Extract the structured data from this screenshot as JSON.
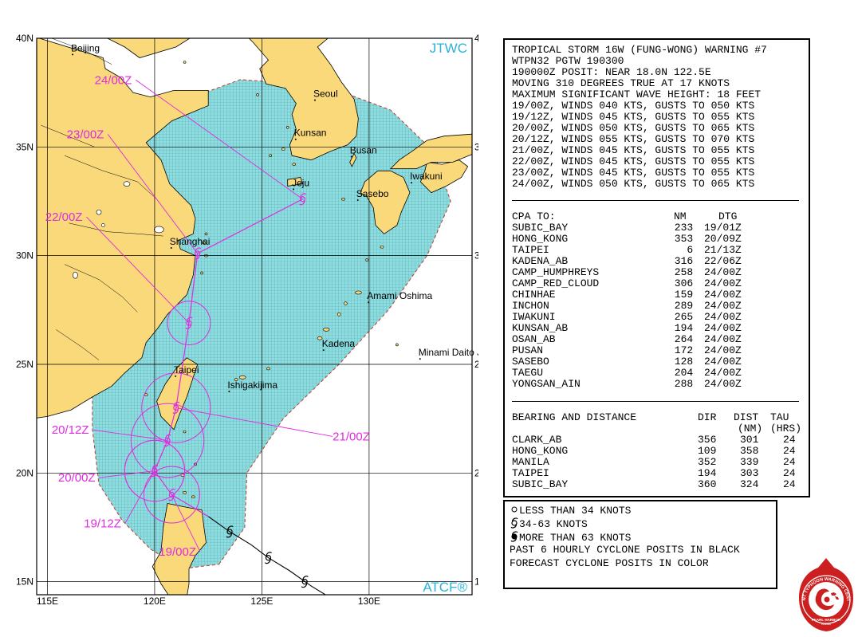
{
  "map": {
    "brand_top": "JTWC",
    "brand_bottom": "ATCF®",
    "lat_labels": [
      "40N",
      "35N",
      "30N",
      "25N",
      "20N",
      "15N"
    ],
    "lon_labels": [
      "115E",
      "120E",
      "125E",
      "130E"
    ],
    "places": [
      {
        "name": "Beijing",
        "lat": 39.4,
        "lon": 116.1
      },
      {
        "name": "Seoul",
        "lat": 37.3,
        "lon": 127.4
      },
      {
        "name": "Kunsan",
        "lat": 35.5,
        "lon": 126.5
      },
      {
        "name": "Busan",
        "lat": 34.7,
        "lon": 129.1
      },
      {
        "name": "Iwakuni",
        "lat": 33.5,
        "lon": 131.9
      },
      {
        "name": "Jeju",
        "lat": 33.2,
        "lon": 126.4
      },
      {
        "name": "Sasebo",
        "lat": 32.7,
        "lon": 129.4
      },
      {
        "name": "Shanghai",
        "lat": 30.5,
        "lon": 120.7
      },
      {
        "name": "Amami Oshima",
        "lat": 28.0,
        "lon": 129.9
      },
      {
        "name": "Kadena",
        "lat": 25.8,
        "lon": 127.8
      },
      {
        "name": "Minami Daito Jima",
        "lat": 25.4,
        "lon": 132.3
      },
      {
        "name": "Taipei",
        "lat": 24.6,
        "lon": 120.9
      },
      {
        "name": "Ishigakijima",
        "lat": 23.9,
        "lon": 123.4
      }
    ],
    "best_track": [
      {
        "lat": 18.0,
        "lon": 122.5
      },
      {
        "lat": 17.3,
        "lon": 123.5
      },
      {
        "lat": 16.7,
        "lon": 124.5
      },
      {
        "lat": 16.1,
        "lon": 125.3
      },
      {
        "lat": 15.5,
        "lon": 126.3
      },
      {
        "lat": 14.8,
        "lon": 127.3
      },
      {
        "lat": 14.2,
        "lon": 128.3
      },
      {
        "lat": 13.6,
        "lon": 129.3
      }
    ],
    "best_track_symbols": [
      {
        "lat": 17.3,
        "lon": 123.5
      },
      {
        "lat": 16.1,
        "lon": 125.3
      },
      {
        "lat": 15.0,
        "lon": 127.0
      },
      {
        "lat": 13.8,
        "lon": 129.0
      }
    ],
    "forecast_track": [
      {
        "lat": 18.0,
        "lon": 122.5
      },
      {
        "lat": 19.0,
        "lon": 120.8
      },
      {
        "lat": 20.1,
        "lon": 120.0
      },
      {
        "lat": 21.5,
        "lon": 120.6
      },
      {
        "lat": 23.0,
        "lon": 121.0
      },
      {
        "lat": 26.9,
        "lon": 121.6
      },
      {
        "lat": 30.1,
        "lon": 122.0
      },
      {
        "lat": 32.6,
        "lon": 126.9
      }
    ],
    "forecast_points": [
      {
        "label": "19/00Z",
        "lat": 19.0,
        "lon": 120.8,
        "r": 1.3,
        "label_lat": 16.2,
        "label_lon": 120.2
      },
      {
        "label": "19/12Z",
        "lat": 20.1,
        "lon": 120.0,
        "r": 1.4,
        "label_lat": 17.5,
        "label_lon": 116.7
      },
      {
        "label": "20/00Z",
        "lat": 20.1,
        "lon": 120.0,
        "r": 1.4,
        "label_lat": 19.6,
        "label_lon": 115.5
      },
      {
        "label": "20/12Z",
        "lat": 21.5,
        "lon": 120.6,
        "r": 1.7,
        "label_lat": 21.8,
        "label_lon": 115.2
      },
      {
        "label": "21/00Z",
        "lat": 23.0,
        "lon": 121.0,
        "r": 1.6,
        "label_lat": 21.5,
        "label_lon": 128.3
      },
      {
        "label": "22/00Z",
        "lat": 26.9,
        "lon": 121.6,
        "r": 1.0,
        "label_lat": 31.6,
        "label_lon": 114.9
      },
      {
        "label": "23/00Z",
        "lat": 30.1,
        "lon": 122.0,
        "r": 0,
        "label_lat": 35.4,
        "label_lon": 115.9
      },
      {
        "label": "24/00Z",
        "lat": 32.6,
        "lon": 126.9,
        "r": 0,
        "label_lat": 37.9,
        "label_lon": 117.2
      }
    ],
    "colors": {
      "land": "#fad97b",
      "sea": "#ffffff",
      "grid": "#000000",
      "track_forecast": "#e02be0",
      "track_best": "#000000",
      "danger": "#8ddde0",
      "danger_edge": "#c0392b",
      "brand": "#2ab3d9",
      "label": "#e02be0"
    }
  },
  "warning": {
    "lines": [
      "TROPICAL STORM 16W (FUNG-WONG) WARNING #7",
      "WTPN32 PGTW 190300",
      "190000Z POSIT: NEAR 18.0N 122.5E",
      "MOVING 310 DEGREES TRUE AT 17 KNOTS",
      "MAXIMUM SIGNIFICANT WAVE HEIGHT: 18 FEET",
      "19/00Z, WINDS 040 KTS, GUSTS TO 050 KTS",
      "19/12Z, WINDS 045 KTS, GUSTS TO 055 KTS",
      "20/00Z, WINDS 050 KTS, GUSTS TO 065 KTS",
      "20/12Z, WINDS 055 KTS, GUSTS TO 070 KTS",
      "21/00Z, WINDS 045 KTS, GUSTS TO 055 KTS",
      "22/00Z, WINDS 045 KTS, GUSTS TO 055 KTS",
      "23/00Z, WINDS 045 KTS, GUSTS TO 055 KTS",
      "24/00Z, WINDS 050 KTS, GUSTS TO 065 KTS"
    ],
    "cpa": {
      "header": {
        "site": "CPA TO:",
        "nm": "NM",
        "dtg": "DTG"
      },
      "rows": [
        {
          "site": "SUBIC_BAY",
          "nm": "233",
          "dtg": "19/01Z"
        },
        {
          "site": "HONG_KONG",
          "nm": "353",
          "dtg": "20/09Z"
        },
        {
          "site": "TAIPEI",
          "nm": "6",
          "dtg": "21/13Z"
        },
        {
          "site": "KADENA_AB",
          "nm": "316",
          "dtg": "22/06Z"
        },
        {
          "site": "CAMP_HUMPHREYS",
          "nm": "258",
          "dtg": "24/00Z"
        },
        {
          "site": "CAMP_RED_CLOUD",
          "nm": "306",
          "dtg": "24/00Z"
        },
        {
          "site": "CHINHAE",
          "nm": "159",
          "dtg": "24/00Z"
        },
        {
          "site": "INCHON",
          "nm": "289",
          "dtg": "24/00Z"
        },
        {
          "site": "IWAKUNI",
          "nm": "265",
          "dtg": "24/00Z"
        },
        {
          "site": "KUNSAN_AB",
          "nm": "194",
          "dtg": "24/00Z"
        },
        {
          "site": "OSAN_AB",
          "nm": "264",
          "dtg": "24/00Z"
        },
        {
          "site": "PUSAN",
          "nm": "172",
          "dtg": "24/00Z"
        },
        {
          "site": "SASEBO",
          "nm": "128",
          "dtg": "24/00Z"
        },
        {
          "site": "TAEGU",
          "nm": "204",
          "dtg": "24/00Z"
        },
        {
          "site": "YONGSAN_AIN",
          "nm": "288",
          "dtg": "24/00Z"
        }
      ]
    },
    "bearing": {
      "header": {
        "site": "BEARING AND DISTANCE",
        "dir": "DIR",
        "dist": "DIST",
        "tau": "TAU"
      },
      "subheader": {
        "dist": "(NM)",
        "tau": "(HRS)"
      },
      "rows": [
        {
          "site": "CLARK_AB",
          "dir": "356",
          "dist": "301",
          "tau": "24"
        },
        {
          "site": "HONG_KONG",
          "dir": "109",
          "dist": "358",
          "tau": "24"
        },
        {
          "site": "MANILA",
          "dir": "352",
          "dist": "339",
          "tau": "24"
        },
        {
          "site": "TAIPEI",
          "dir": "194",
          "dist": "303",
          "tau": "24"
        },
        {
          "site": "SUBIC_BAY",
          "dir": "360",
          "dist": "324",
          "tau": "24"
        }
      ]
    }
  },
  "legend": {
    "rows": [
      {
        "icon": "circle-small-icon",
        "text": "LESS THAN 34 KNOTS"
      },
      {
        "icon": "cyclone-open-icon",
        "text": "34-63 KNOTS"
      },
      {
        "icon": "cyclone-filled-icon",
        "text": "MORE THAN 63 KNOTS"
      },
      {
        "icon": "",
        "text": "PAST 6 HOURLY CYCLONE POSITS IN BLACK"
      },
      {
        "icon": "",
        "text": "FORECAST CYCLONE POSITS IN COLOR"
      }
    ]
  },
  "logo": {
    "ring_text": "JOINT TYPHOON WARNING CENTER",
    "bottom_text": "PEARL HARBOR",
    "sub_text": "HAWAII",
    "colors": {
      "ring": "#cc1f1f",
      "inner": "#ffffff",
      "accent": "#cc1f1f"
    }
  }
}
